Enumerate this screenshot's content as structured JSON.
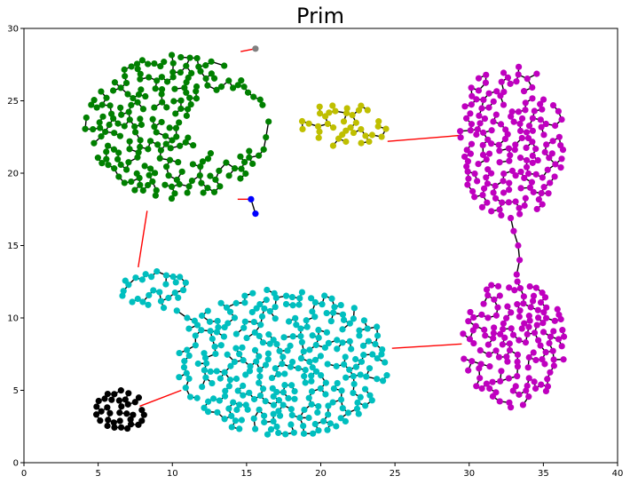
{
  "chart_data": {
    "type": "scatter",
    "title": "Prim",
    "xlabel": "",
    "ylabel": "",
    "xlim": [
      0,
      40
    ],
    "ylim": [
      0,
      30
    ],
    "xticks": [
      "0",
      "5",
      "10",
      "15",
      "20",
      "25",
      "30",
      "35",
      "40"
    ],
    "yticks": [
      "0",
      "5",
      "10",
      "15",
      "20",
      "25",
      "30"
    ],
    "grid": false,
    "legend": "none",
    "tree_edge_color": "#000000",
    "inter_cluster_edge_color": "#ff0000",
    "clusters": [
      {
        "color": "#008000",
        "cx": 10.3,
        "cy": 23.2,
        "rx": 6.2,
        "ry": 5.0,
        "n": 210,
        "seed": 11,
        "crescent": true
      },
      {
        "color": "#00bfbf",
        "cx": 17.5,
        "cy": 6.9,
        "rx": 7.2,
        "ry": 5.1,
        "n": 300,
        "seed": 23
      },
      {
        "color": "#00bfbf",
        "cx": 8.8,
        "cy": 12.0,
        "rx": 2.3,
        "ry": 1.4,
        "n": 28,
        "seed": 31
      },
      {
        "color": "#bf00bf",
        "cx": 32.8,
        "cy": 22.2,
        "rx": 3.6,
        "ry": 5.5,
        "n": 170,
        "seed": 47
      },
      {
        "color": "#bf00bf",
        "cx": 33.0,
        "cy": 8.2,
        "rx": 3.5,
        "ry": 4.5,
        "n": 140,
        "seed": 59
      },
      {
        "color": "#bfbf00",
        "cx": 21.6,
        "cy": 23.3,
        "rx": 2.9,
        "ry": 1.7,
        "n": 38,
        "seed": 67
      },
      {
        "color": "#000000",
        "cx": 6.5,
        "cy": 3.6,
        "rx": 1.7,
        "ry": 1.4,
        "n": 35,
        "seed": 79
      }
    ],
    "chains": [
      {
        "color": "#bf00bf",
        "points": [
          [
            32.8,
            16.9
          ],
          [
            33.0,
            16.0
          ],
          [
            33.3,
            15.0
          ],
          [
            33.4,
            14.0
          ],
          [
            33.2,
            13.0
          ]
        ]
      },
      {
        "color": "#00bfbf",
        "points": [
          [
            10.3,
            10.5
          ],
          [
            11.0,
            10.0
          ],
          [
            11.5,
            9.8
          ]
        ]
      }
    ],
    "extra_points": [
      {
        "x": 15.3,
        "y": 18.2,
        "color": "#0000ff"
      },
      {
        "x": 15.6,
        "y": 17.2,
        "color": "#0000ff"
      },
      {
        "x": 15.6,
        "y": 28.6,
        "color": "#808080"
      }
    ],
    "extra_edges": [
      {
        "from": [
          15.3,
          18.2
        ],
        "to": [
          15.6,
          17.2
        ],
        "color": "#000000"
      }
    ],
    "red_edges": [
      {
        "from": [
          14.4,
          18.2
        ],
        "to": [
          15.3,
          18.2
        ]
      },
      {
        "from": [
          14.6,
          28.4
        ],
        "to": [
          15.6,
          28.6
        ]
      },
      {
        "from": [
          8.3,
          17.4
        ],
        "to": [
          7.7,
          13.5
        ]
      },
      {
        "from": [
          24.5,
          22.2
        ],
        "to": [
          29.3,
          22.6
        ]
      },
      {
        "from": [
          24.8,
          7.9
        ],
        "to": [
          29.5,
          8.2
        ]
      },
      {
        "from": [
          7.8,
          3.9
        ],
        "to": [
          10.6,
          5.0
        ]
      }
    ]
  }
}
